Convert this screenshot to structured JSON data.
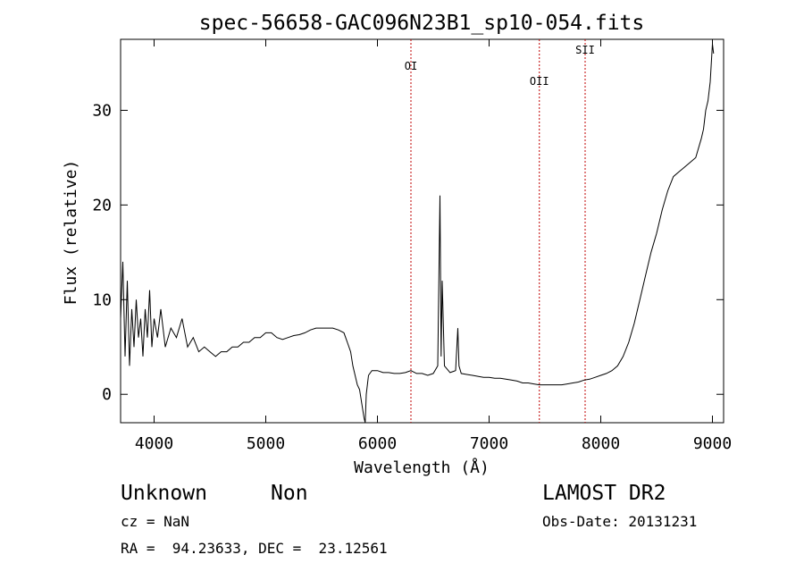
{
  "chart_data": {
    "type": "line",
    "title": "spec-56658-GAC096N23B1_sp10-054.fits",
    "xlabel": "Wavelength (Å)",
    "ylabel": "Flux (relative)",
    "xlim": [
      3700,
      9100
    ],
    "ylim": [
      -3,
      37.5
    ],
    "xticks": [
      4000,
      5000,
      6000,
      7000,
      8000,
      9000
    ],
    "yticks": [
      0,
      10,
      20,
      30
    ],
    "grid": false,
    "series": [
      {
        "x": [
          3700,
          3720,
          3740,
          3760,
          3780,
          3800,
          3820,
          3840,
          3860,
          3880,
          3900,
          3920,
          3940,
          3960,
          3980,
          4000,
          4030,
          4060,
          4100,
          4150,
          4200,
          4250,
          4300,
          4350,
          4400,
          4450,
          4500,
          4550,
          4600,
          4650,
          4700,
          4750,
          4800,
          4850,
          4900,
          4950,
          5000,
          5050,
          5100,
          5150,
          5200,
          5250,
          5300,
          5350,
          5400,
          5450,
          5500,
          5550,
          5600,
          5650,
          5700,
          5730,
          5760,
          5780,
          5800,
          5820,
          5840,
          5860,
          5880,
          5890,
          5900,
          5920,
          5950,
          6000,
          6050,
          6100,
          6150,
          6200,
          6250,
          6300,
          6350,
          6400,
          6450,
          6500,
          6540,
          6560,
          6570,
          6580,
          6600,
          6650,
          6700,
          6720,
          6730,
          6750,
          6800,
          6850,
          6900,
          6950,
          7000,
          7050,
          7100,
          7150,
          7200,
          7250,
          7300,
          7350,
          7400,
          7450,
          7500,
          7550,
          7600,
          7650,
          7700,
          7750,
          7800,
          7850,
          7900,
          7950,
          8000,
          8050,
          8100,
          8150,
          8200,
          8250,
          8300,
          8350,
          8400,
          8450,
          8500,
          8550,
          8600,
          8650,
          8700,
          8750,
          8800,
          8850,
          8900,
          8920,
          8940,
          8960,
          8980,
          9000,
          9010
        ],
        "values": [
          8,
          14,
          4,
          12,
          3,
          9,
          5,
          10,
          6,
          8,
          4,
          9,
          6,
          11,
          5,
          8,
          6,
          9,
          5,
          7,
          6,
          8,
          5,
          6,
          4.5,
          5,
          4.5,
          4,
          4.5,
          4.5,
          5,
          5,
          5.5,
          5.5,
          6,
          6,
          6.5,
          6.5,
          6,
          5.8,
          6,
          6.2,
          6.3,
          6.5,
          6.8,
          7,
          7,
          7,
          7,
          6.8,
          6.5,
          5.5,
          4.5,
          3,
          2,
          1,
          0.5,
          -1,
          -2.5,
          -3,
          0,
          2,
          2.5,
          2.5,
          2.3,
          2.3,
          2.2,
          2.2,
          2.3,
          2.5,
          2.2,
          2.2,
          2.0,
          2.2,
          3,
          21,
          4,
          12,
          3,
          2.3,
          2.5,
          7,
          3,
          2.2,
          2.1,
          2.0,
          1.9,
          1.8,
          1.8,
          1.7,
          1.7,
          1.6,
          1.5,
          1.4,
          1.2,
          1.2,
          1.1,
          1.0,
          1.0,
          1.0,
          1.0,
          1.0,
          1.1,
          1.2,
          1.3,
          1.5,
          1.6,
          1.8,
          2.0,
          2.2,
          2.5,
          3.0,
          4.0,
          5.5,
          7.5,
          10,
          12.5,
          15,
          17,
          19.5,
          21.5,
          23,
          23.5,
          24,
          24.5,
          25,
          27,
          28,
          30,
          31,
          33,
          37,
          36
        ]
      }
    ],
    "annotations": [
      {
        "label": "OI",
        "x": 6300
      },
      {
        "label": "OII",
        "x": 7450
      },
      {
        "label": "SII",
        "x": 7860
      }
    ]
  },
  "footer": {
    "class_label": "Unknown",
    "subclass_label": "Non",
    "survey": "LAMOST DR2",
    "redshift": "cz = NaN",
    "obs_date": "Obs-Date: 20131231",
    "coords": "RA =  94.23633, DEC =  23.12561"
  },
  "colors": {
    "line": "#000000",
    "marker": "#c00000"
  }
}
